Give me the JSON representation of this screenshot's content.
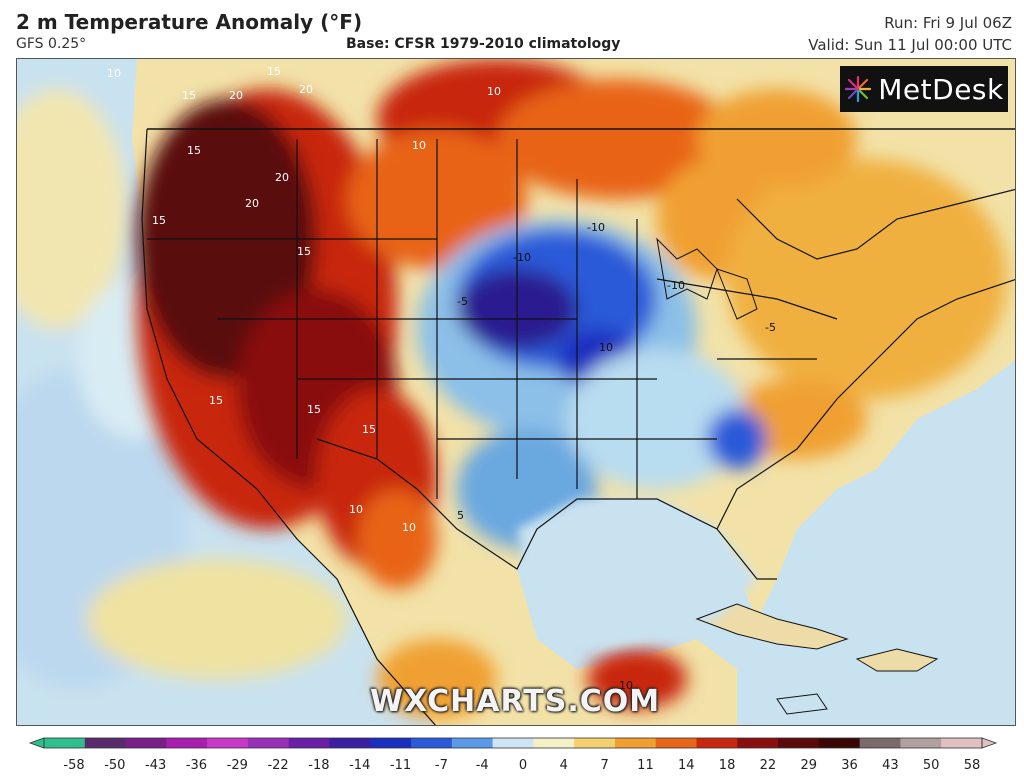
{
  "header": {
    "title": "2 m Temperature Anomaly (°F)",
    "model": "GFS 0.25°",
    "base": "Base: CFSR 1979-2010 climatology",
    "run": "Run: Fri 9 Jul 06Z",
    "valid": "Valid: Sun 11 Jul 00:00 UTC"
  },
  "logo": {
    "name": "MetDesk",
    "icon": "metdesk-starburst-icon"
  },
  "watermark": "WXCHARTS.COM",
  "contour_labels": [
    "10",
    "15",
    "20",
    "15",
    "20",
    "15",
    "20",
    "15",
    "20",
    "10",
    "10",
    "15",
    "-10",
    "-5",
    "10",
    "-5",
    "15",
    "15",
    "15",
    "10",
    "10",
    "-10",
    "-10",
    "5",
    "10"
  ],
  "colorbar": {
    "ticks": [
      "-58",
      "-50",
      "-43",
      "-36",
      "-29",
      "-22",
      "-18",
      "-14",
      "-11",
      "-7",
      "-4",
      "0",
      "4",
      "7",
      "11",
      "14",
      "18",
      "22",
      "29",
      "36",
      "43",
      "50",
      "58"
    ],
    "colors": [
      "#2fbf8f",
      "#5a2a6e",
      "#7a1f8a",
      "#a81fb0",
      "#c837c8",
      "#9a2fb8",
      "#6a1fa8",
      "#3a1fa0",
      "#1a2fc0",
      "#2a5ad8",
      "#5a9ae8",
      "#cfe4f4",
      "#f4f0c8",
      "#f4d070",
      "#f0a030",
      "#e86418",
      "#c82810",
      "#8a1010",
      "#5a0a0a",
      "#3a0606",
      "#7a6a6a",
      "#b0a0a0",
      "#e0c0c0"
    ]
  },
  "legend_palette": {
    "ocean_base": "#c9e2f0",
    "land_neutral": "#f2e8b8",
    "warm": "#f0a030",
    "hot": "#c82810",
    "very_hot": "#5a0a0a",
    "cool": "#9ccbea",
    "cold": "#2a5ad8",
    "very_cold": "#2a1a90"
  }
}
